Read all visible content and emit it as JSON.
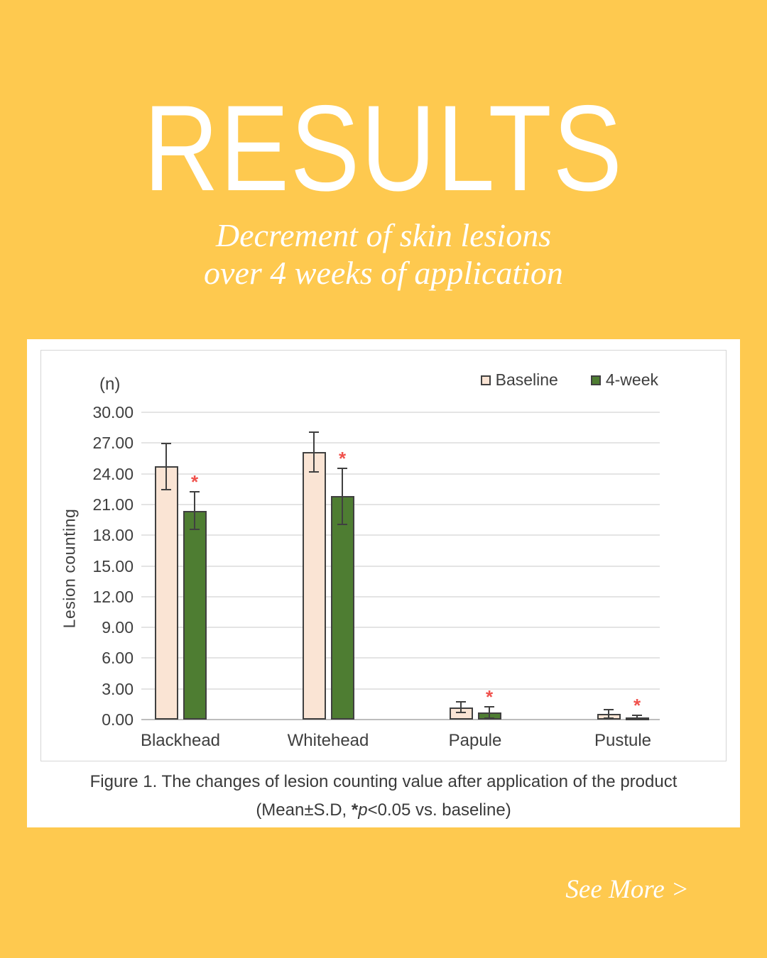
{
  "header": {
    "title": "RESULTS",
    "subtitle_line1": "Decrement of skin lesions",
    "subtitle_line2": "over 4 weeks of application"
  },
  "footer": {
    "see_more": "See More >"
  },
  "figure": {
    "caption_line1": "Figure 1. The changes of lesion counting value after application of the product",
    "caption_prefix": "(Mean±S.D, ",
    "caption_star": "*",
    "caption_p": "p",
    "caption_suffix": "<0.05 vs. baseline)"
  },
  "chart_data": {
    "type": "bar",
    "unit_label": "(n)",
    "ylabel": "Lesion counting",
    "categories": [
      "Blackhead",
      "Whitehead",
      "Papule",
      "Pustule"
    ],
    "series": [
      {
        "name": "Baseline",
        "color": "#FAE4D4",
        "values": [
          24.7,
          26.1,
          1.2,
          0.55
        ],
        "sd": [
          2.3,
          2.0,
          0.6,
          0.5
        ],
        "significant": [
          false,
          false,
          false,
          false
        ]
      },
      {
        "name": "4-week",
        "color": "#4E7D32",
        "values": [
          20.4,
          21.8,
          0.7,
          0.2
        ],
        "sd": [
          1.9,
          2.8,
          0.65,
          0.3
        ],
        "significant": [
          true,
          true,
          true,
          true
        ]
      }
    ],
    "sig_marker": "*",
    "sig_color": "#F0524D",
    "bar_border_color": "#404040",
    "ylim": [
      0,
      30
    ],
    "ytick_step": 3,
    "ytick_labels": [
      "0.00",
      "3.00",
      "6.00",
      "9.00",
      "12.00",
      "15.00",
      "18.00",
      "21.00",
      "24.00",
      "27.00",
      "30.00"
    ],
    "grid": true,
    "legend_position": "top-right"
  }
}
